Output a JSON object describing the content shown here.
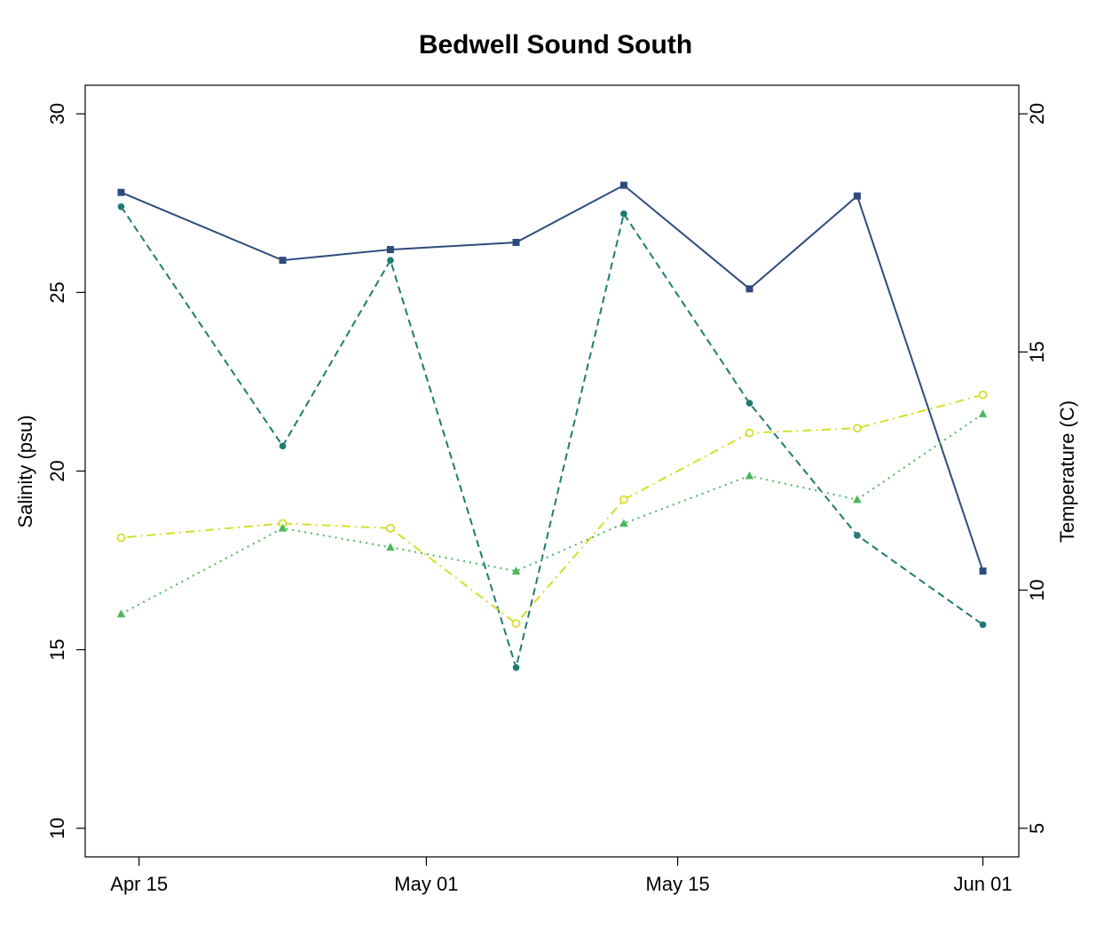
{
  "chart_data": {
    "type": "line",
    "title": "Bedwell Sound South",
    "ylabel_left": "Salinity (psu)",
    "ylabel_right": "Temperature (C)",
    "x_axis": {
      "type": "date",
      "range": [
        "2024-04-12",
        "2024-06-03"
      ],
      "ticks": [
        {
          "date": "2024-04-15",
          "label": "Apr 15"
        },
        {
          "date": "2024-05-01",
          "label": "May 01"
        },
        {
          "date": "2024-05-15",
          "label": "May 15"
        },
        {
          "date": "2024-06-01",
          "label": "Jun 01"
        }
      ]
    },
    "y_left": {
      "range": [
        9.2,
        30.8
      ],
      "ticks": [
        10,
        15,
        20,
        25,
        30
      ]
    },
    "y_right": {
      "range": [
        4.4,
        20.6
      ],
      "ticks": [
        5,
        10,
        15,
        20
      ]
    },
    "series": [
      {
        "axis": "left",
        "color": "#2F4B7C",
        "dash": "solid",
        "marker": "square",
        "x": [
          "2024-04-14",
          "2024-04-23",
          "2024-04-29",
          "2024-05-06",
          "2024-05-12",
          "2024-05-19",
          "2024-05-25",
          "2024-06-01"
        ],
        "values": [
          27.8,
          25.9,
          26.2,
          26.4,
          28.0,
          25.1,
          27.7,
          17.2
        ]
      },
      {
        "axis": "left",
        "color": "#1F7A73",
        "dash": "dashed",
        "marker": "circle",
        "x": [
          "2024-04-14",
          "2024-04-23",
          "2024-04-29",
          "2024-05-06",
          "2024-05-12",
          "2024-05-19",
          "2024-05-25",
          "2024-06-01"
        ],
        "values": [
          27.4,
          20.7,
          25.9,
          14.5,
          27.2,
          21.9,
          18.2,
          15.7
        ]
      },
      {
        "axis": "right",
        "color": "#D4DF2A",
        "dash": "dotdash",
        "marker": "open-circle",
        "x": [
          "2024-04-14",
          "2024-04-23",
          "2024-04-29",
          "2024-05-06",
          "2024-05-12",
          "2024-05-19",
          "2024-05-25",
          "2024-06-01"
        ],
        "values": [
          11.1,
          11.4,
          11.3,
          9.3,
          11.9,
          13.3,
          13.4,
          14.1
        ]
      },
      {
        "axis": "right",
        "color": "#4CB85A",
        "dash": "dotted",
        "marker": "triangle",
        "x": [
          "2024-04-14",
          "2024-04-23",
          "2024-04-29",
          "2024-05-06",
          "2024-05-12",
          "2024-05-19",
          "2024-05-25",
          "2024-06-01"
        ],
        "values": [
          9.5,
          11.3,
          10.9,
          10.4,
          11.4,
          12.4,
          11.9,
          13.7
        ]
      }
    ],
    "grid": false,
    "legend": "none"
  }
}
